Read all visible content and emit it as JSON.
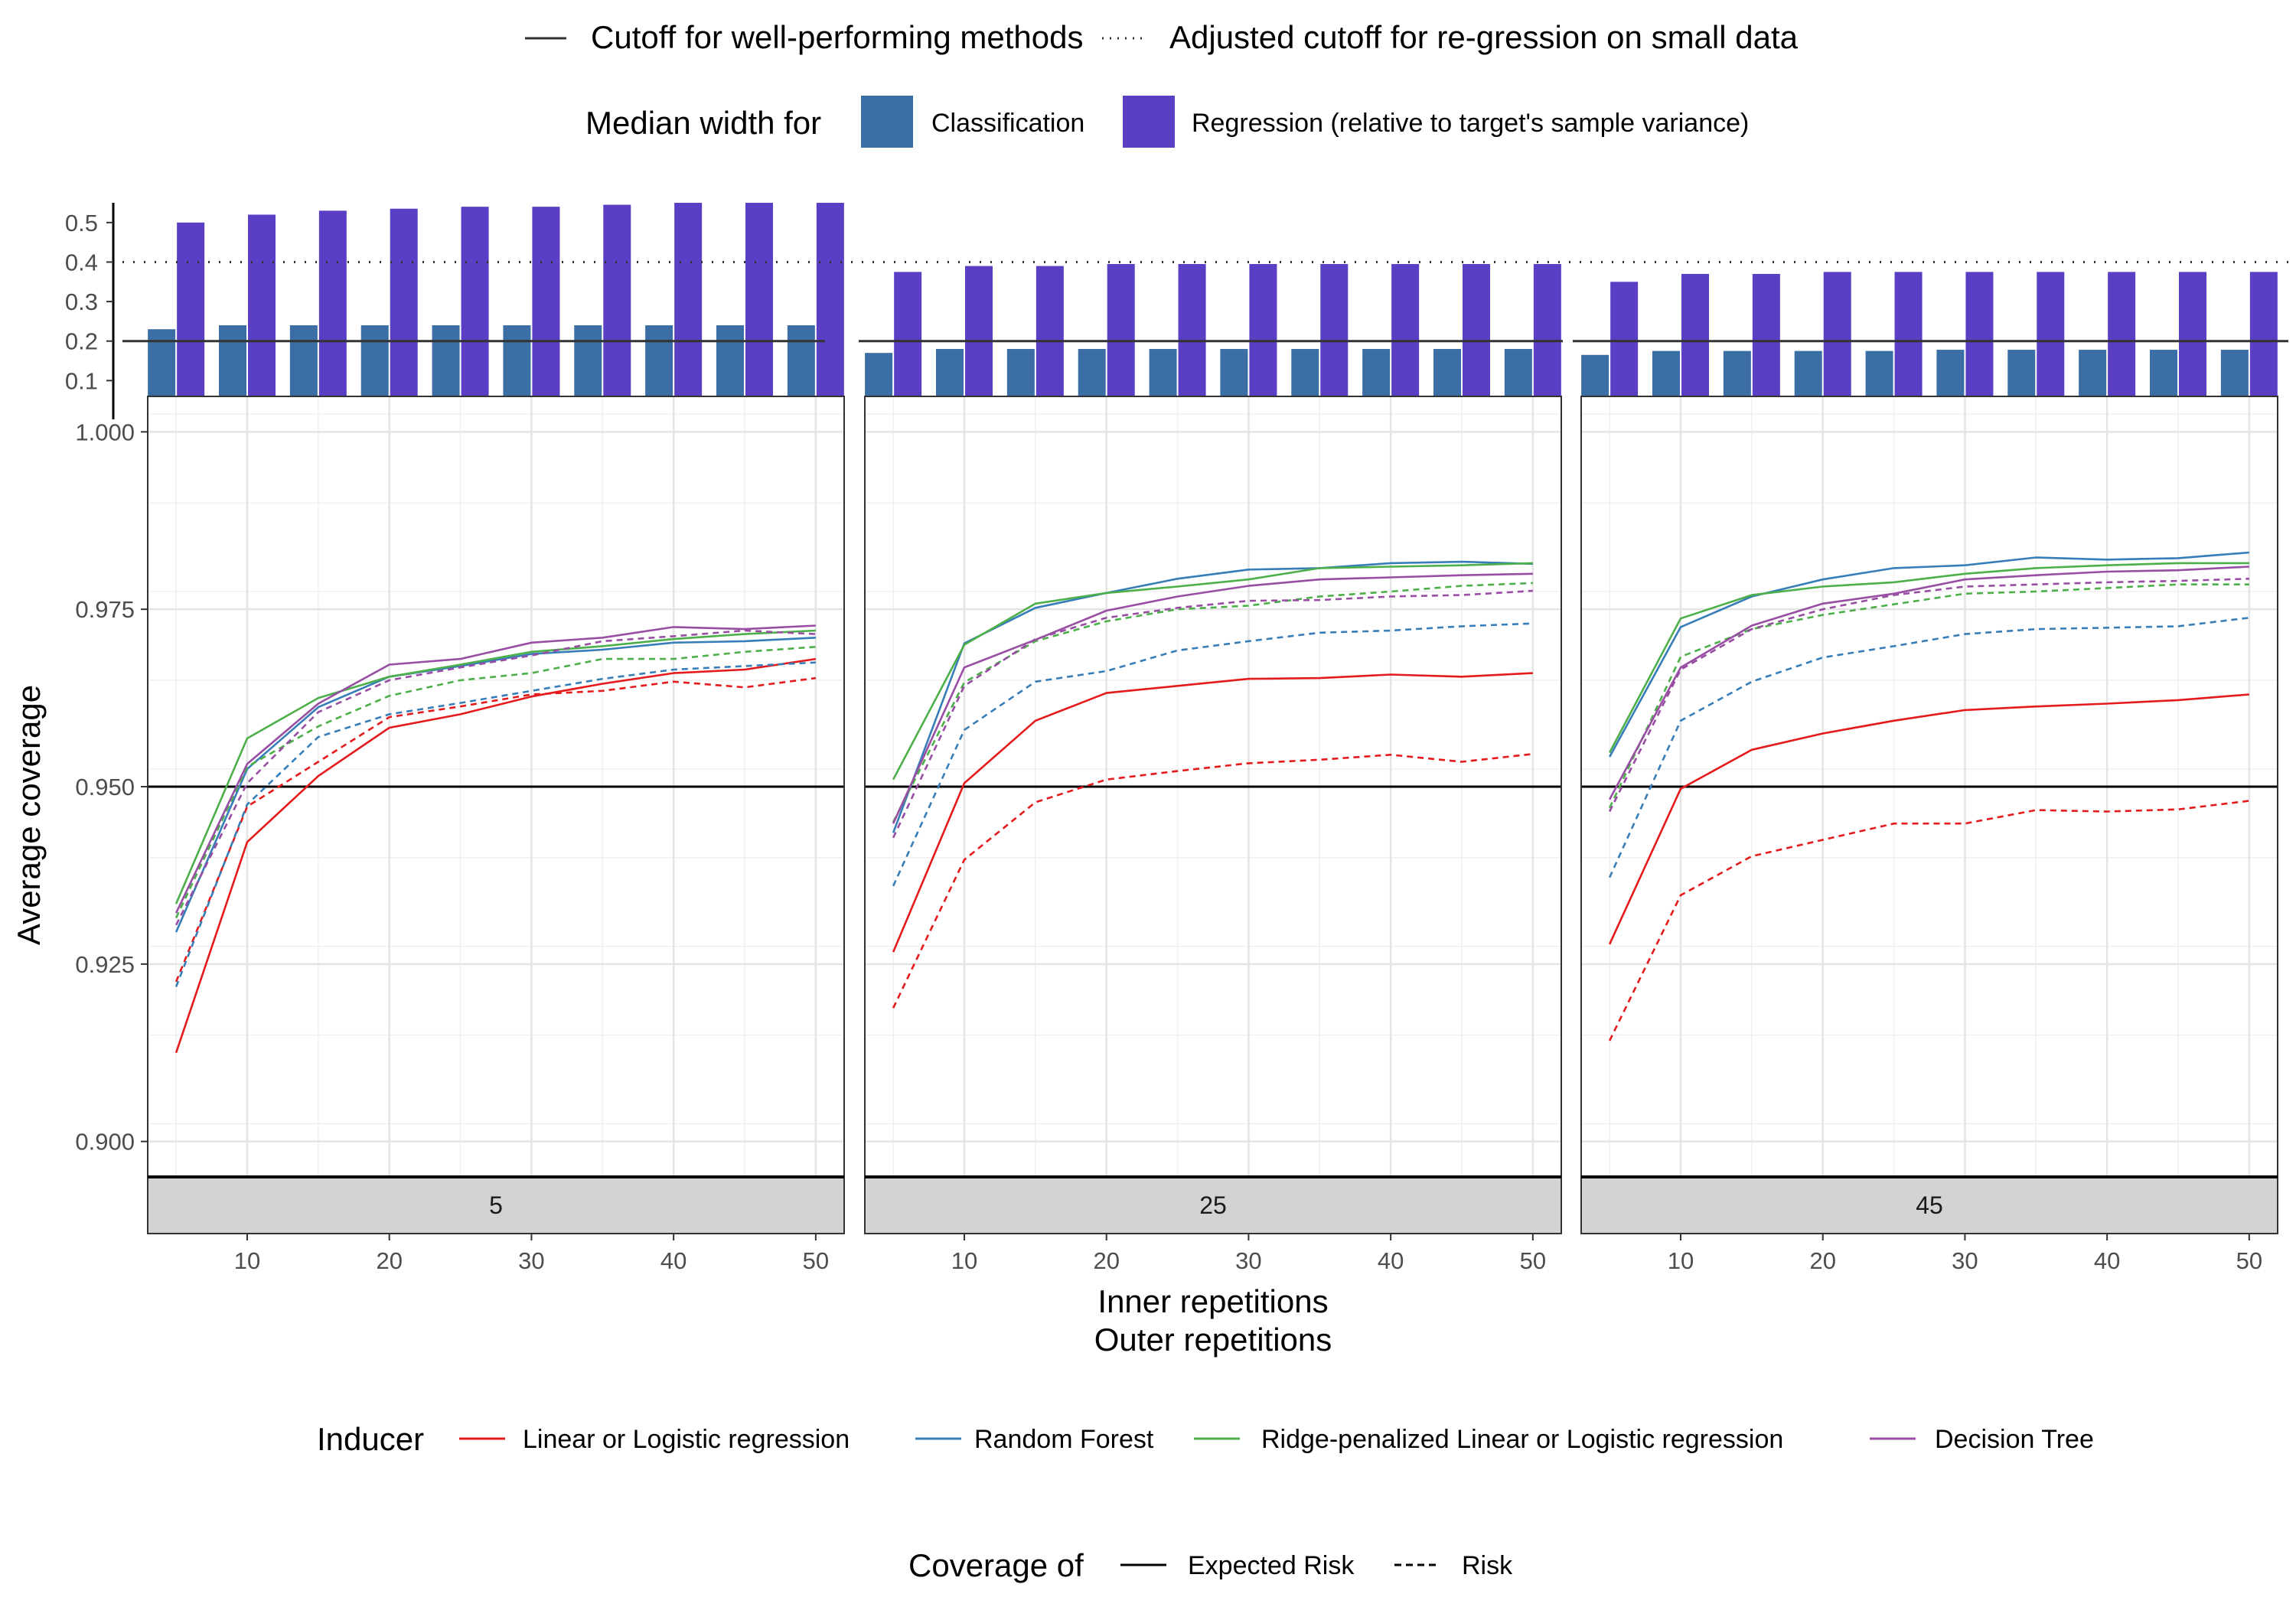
{
  "chart_data": {
    "type": "line",
    "title": "",
    "ylabel": "Average coverage",
    "xlabel_lines": [
      "Inner repetitions",
      "Outer repetitions"
    ],
    "x_ticks": [
      10,
      20,
      30,
      40,
      50
    ],
    "ylim": [
      0.895,
      1.005
    ],
    "y_ticks": [
      0.9,
      0.925,
      0.95,
      0.975,
      1.0
    ],
    "y_tick_labels": [
      "0.900",
      "0.925",
      "0.950",
      "0.975",
      "1.000"
    ],
    "grid": true,
    "reference_line": 0.95,
    "facets": [
      "5",
      "25",
      "45"
    ],
    "x": [
      5,
      10,
      15,
      20,
      25,
      30,
      35,
      40,
      45,
      50
    ],
    "width_panel": {
      "y_ticks": [
        0.1,
        0.2,
        0.3,
        0.4,
        0.5
      ],
      "y_tick_labels": [
        "0.1",
        "0.2",
        "0.3",
        "0.4",
        "0.5"
      ],
      "ylim": [
        0.06,
        0.55
      ],
      "cutoff_solid": 0.2,
      "cutoff_dotted": 0.4,
      "classification": [
        [
          0.23,
          0.24,
          0.24,
          0.24,
          0.24,
          0.24,
          0.24,
          0.24,
          0.24,
          0.24
        ],
        [
          0.17,
          0.18,
          0.18,
          0.18,
          0.18,
          0.18,
          0.18,
          0.18,
          0.18,
          0.18
        ],
        [
          0.165,
          0.175,
          0.175,
          0.175,
          0.175,
          0.178,
          0.178,
          0.178,
          0.178,
          0.178
        ]
      ],
      "regression": [
        [
          0.5,
          0.52,
          0.53,
          0.535,
          0.54,
          0.54,
          0.545,
          0.55,
          0.55,
          0.55
        ],
        [
          0.375,
          0.39,
          0.39,
          0.395,
          0.395,
          0.395,
          0.395,
          0.395,
          0.395,
          0.395
        ],
        [
          0.35,
          0.37,
          0.37,
          0.375,
          0.375,
          0.375,
          0.375,
          0.375,
          0.375,
          0.375
        ]
      ]
    },
    "series": [
      {
        "name": "Linear or Logistic regression",
        "coverage": "Expected Risk",
        "values": [
          [
            0.9125,
            0.9422,
            0.9515,
            0.9583,
            0.9602,
            0.9627,
            0.9645,
            0.966,
            0.9665,
            0.968
          ],
          [
            0.9267,
            0.9505,
            0.9593,
            0.9632,
            0.9642,
            0.9652,
            0.9653,
            0.9658,
            0.9655,
            0.966
          ],
          [
            0.9278,
            0.9497,
            0.9552,
            0.9575,
            0.9593,
            0.9608,
            0.9613,
            0.9617,
            0.9622,
            0.963
          ]
        ]
      },
      {
        "name": "Linear or Logistic regression",
        "coverage": "Risk",
        "values": [
          [
            0.9225,
            0.9472,
            0.9535,
            0.9598,
            0.9613,
            0.963,
            0.9635,
            0.9648,
            0.964,
            0.9653
          ],
          [
            0.9188,
            0.9397,
            0.9478,
            0.951,
            0.9522,
            0.9533,
            0.9538,
            0.9545,
            0.9535,
            0.9546
          ],
          [
            0.9142,
            0.9347,
            0.9402,
            0.9425,
            0.9448,
            0.9448,
            0.9467,
            0.9465,
            0.9468,
            0.948
          ]
        ]
      },
      {
        "name": "Random Forest",
        "coverage": "Expected Risk",
        "values": [
          [
            0.9295,
            0.9525,
            0.9612,
            0.9655,
            0.967,
            0.9687,
            0.9693,
            0.9703,
            0.9705,
            0.971
          ],
          [
            0.9435,
            0.9702,
            0.9752,
            0.9773,
            0.9793,
            0.9806,
            0.9808,
            0.9815,
            0.9817,
            0.9814
          ],
          [
            0.9542,
            0.9725,
            0.9768,
            0.9792,
            0.9808,
            0.9812,
            0.9823,
            0.982,
            0.9822,
            0.983
          ]
        ]
      },
      {
        "name": "Random Forest",
        "coverage": "Risk",
        "values": [
          [
            0.9218,
            0.9475,
            0.957,
            0.9602,
            0.9618,
            0.9635,
            0.9652,
            0.9665,
            0.967,
            0.9675
          ],
          [
            0.936,
            0.958,
            0.9648,
            0.9663,
            0.9692,
            0.9705,
            0.9717,
            0.972,
            0.9726,
            0.973
          ],
          [
            0.9372,
            0.9593,
            0.9648,
            0.9682,
            0.9698,
            0.9715,
            0.9722,
            0.9724,
            0.9726,
            0.9738
          ]
        ]
      },
      {
        "name": "Ridge-penalized Linear or Logistic regression",
        "coverage": "Expected Risk",
        "values": [
          [
            0.9335,
            0.9568,
            0.9625,
            0.9655,
            0.9672,
            0.969,
            0.9698,
            0.9708,
            0.9715,
            0.972
          ],
          [
            0.951,
            0.97,
            0.9758,
            0.9773,
            0.9782,
            0.9792,
            0.9808,
            0.981,
            0.9812,
            0.9815
          ],
          [
            0.9548,
            0.9737,
            0.977,
            0.9782,
            0.9788,
            0.98,
            0.9808,
            0.9812,
            0.9815,
            0.9815
          ]
        ]
      },
      {
        "name": "Ridge-penalized Linear or Logistic regression",
        "coverage": "Risk",
        "values": [
          [
            0.9315,
            0.9528,
            0.9585,
            0.9628,
            0.965,
            0.966,
            0.968,
            0.968,
            0.969,
            0.9697
          ],
          [
            0.945,
            0.9647,
            0.9705,
            0.9733,
            0.975,
            0.9755,
            0.9768,
            0.9775,
            0.9783,
            0.9787
          ],
          [
            0.947,
            0.9683,
            0.9722,
            0.9742,
            0.9757,
            0.9772,
            0.9775,
            0.978,
            0.9785,
            0.9785
          ]
        ]
      },
      {
        "name": "Decision Tree",
        "coverage": "Expected Risk",
        "values": [
          [
            0.9322,
            0.9532,
            0.9617,
            0.9672,
            0.968,
            0.9703,
            0.971,
            0.9725,
            0.9722,
            0.9727
          ],
          [
            0.9448,
            0.9668,
            0.9707,
            0.9748,
            0.9768,
            0.9783,
            0.9792,
            0.9795,
            0.9798,
            0.98
          ],
          [
            0.9482,
            0.9668,
            0.9727,
            0.9758,
            0.9772,
            0.9792,
            0.9798,
            0.9803,
            0.9805,
            0.981
          ]
        ]
      },
      {
        "name": "Decision Tree",
        "coverage": "Risk",
        "values": [
          [
            0.9305,
            0.9505,
            0.9605,
            0.965,
            0.9668,
            0.9685,
            0.9705,
            0.9712,
            0.972,
            0.9715
          ],
          [
            0.9428,
            0.9642,
            0.9708,
            0.9738,
            0.9752,
            0.9762,
            0.9763,
            0.9768,
            0.977,
            0.9776
          ],
          [
            0.9465,
            0.9665,
            0.9722,
            0.975,
            0.977,
            0.9782,
            0.9785,
            0.9788,
            0.979,
            0.9793
          ]
        ]
      }
    ]
  },
  "colors": {
    "Linear or Logistic regression": "#e41a1c",
    "Random Forest": "#377eb8",
    "Ridge-penalized Linear or Logistic regression": "#4daf4a",
    "Decision Tree": "#984ea3",
    "classification_bar": "#3b6ea5",
    "regression_bar": "#5a3fc4"
  },
  "legends": {
    "cutoff_solid": "Cutoff for well-performing methods",
    "cutoff_dotted": "Adjusted cutoff for re-gression on small data",
    "width_title": "Median width for",
    "width_classification": "Classification",
    "width_regression": "Regression (relative to target's sample variance)",
    "inducer_title": "Inducer",
    "inducers": [
      "Linear or Logistic regression",
      "Random Forest",
      "Ridge-penalized Linear or Logistic regression",
      "Decision Tree"
    ],
    "coverage_title": "Coverage of",
    "coverage_expected": "Expected Risk",
    "coverage_risk": "Risk"
  }
}
